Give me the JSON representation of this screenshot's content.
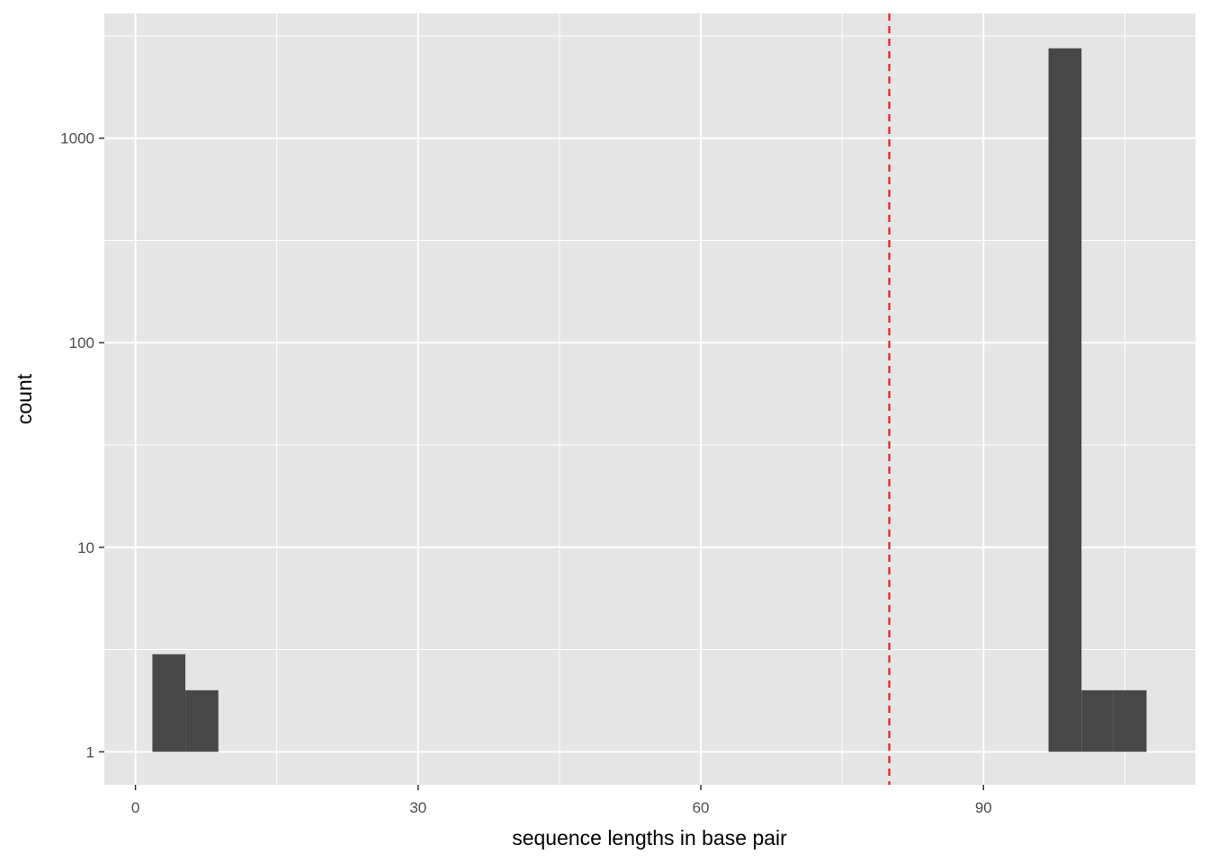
{
  "chart_data": {
    "type": "bar",
    "subtype": "histogram",
    "title": "",
    "xlabel": "sequence lengths in base pair",
    "ylabel": "count",
    "x_scale": "linear",
    "y_scale": "log10",
    "xlim": [
      -3.3,
      112.5
    ],
    "ylim": [
      0.69,
      4070
    ],
    "x_ticks": [
      0,
      30,
      60,
      90
    ],
    "x_tick_labels": [
      "0",
      "30",
      "60",
      "90"
    ],
    "y_ticks": [
      1,
      10,
      100,
      1000
    ],
    "y_tick_labels": [
      "1",
      "10",
      "100",
      "1000"
    ],
    "grid": true,
    "bins": [
      {
        "x0": 1.8,
        "x1": 5.3,
        "count": 3
      },
      {
        "x0": 5.3,
        "x1": 8.8,
        "count": 2
      },
      {
        "x0": 96.9,
        "x1": 100.4,
        "count": 2750
      },
      {
        "x0": 100.4,
        "x1": 103.8,
        "count": 2
      },
      {
        "x0": 103.8,
        "x1": 107.3,
        "count": 2
      }
    ],
    "bar_color": "#474747",
    "reference_line": {
      "x": 80,
      "color": "#e41a1c",
      "style": "dashed"
    },
    "panel_background": "#e5e5e5"
  }
}
